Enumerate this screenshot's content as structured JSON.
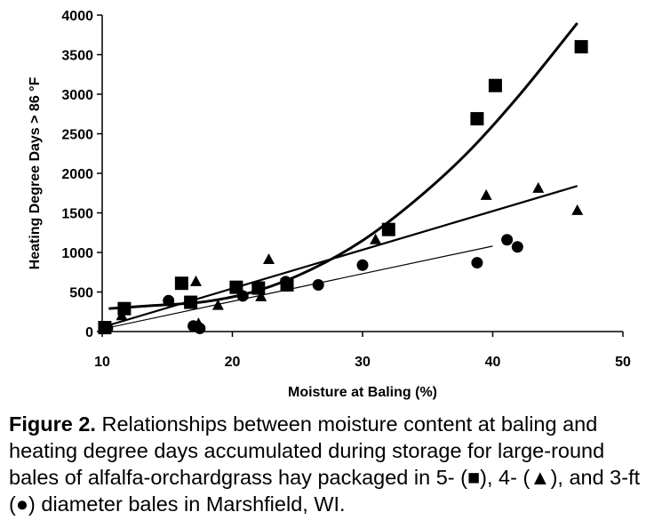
{
  "chart_data": {
    "type": "scatter",
    "xlabel": "Moisture at Baling (%)",
    "ylabel": "Heating Degree Days > 86 °F",
    "xlim": [
      10,
      50
    ],
    "ylim": [
      0,
      4000
    ],
    "x_ticks": [
      "10",
      "20",
      "30",
      "40",
      "50"
    ],
    "y_ticks": [
      "0",
      "500",
      "1000",
      "1500",
      "2000",
      "2500",
      "3000",
      "3500",
      "4000"
    ],
    "series": [
      {
        "marker": "square",
        "points": [
          {
            "x": 10.2,
            "y": 50
          },
          {
            "x": 11.7,
            "y": 290
          },
          {
            "x": 16.1,
            "y": 610
          },
          {
            "x": 16.8,
            "y": 370
          },
          {
            "x": 20.3,
            "y": 560
          },
          {
            "x": 22.0,
            "y": 550
          },
          {
            "x": 24.2,
            "y": 590
          },
          {
            "x": 32.0,
            "y": 1290
          },
          {
            "x": 38.8,
            "y": 2690
          },
          {
            "x": 40.2,
            "y": 3110
          },
          {
            "x": 46.8,
            "y": 3600
          }
        ],
        "trendline": {
          "kind": "polynomial",
          "x": [
            10.5,
            14,
            18,
            22,
            26,
            30,
            34,
            38,
            42,
            46.5
          ],
          "y": [
            290,
            330,
            380,
            520,
            780,
            1150,
            1650,
            2250,
            2980,
            3900
          ]
        }
      },
      {
        "marker": "triangle",
        "points": [
          {
            "x": 11.5,
            "y": 200
          },
          {
            "x": 17.2,
            "y": 630
          },
          {
            "x": 17.4,
            "y": 100
          },
          {
            "x": 18.9,
            "y": 330
          },
          {
            "x": 22.2,
            "y": 440
          },
          {
            "x": 22.8,
            "y": 910
          },
          {
            "x": 31.0,
            "y": 1160
          },
          {
            "x": 39.5,
            "y": 1720
          },
          {
            "x": 43.5,
            "y": 1810
          },
          {
            "x": 46.5,
            "y": 1530
          }
        ],
        "trendline": {
          "kind": "linear",
          "x": [
            10.5,
            46.5
          ],
          "y": [
            80,
            1840
          ]
        }
      },
      {
        "marker": "circle",
        "points": [
          {
            "x": 10.4,
            "y": 40
          },
          {
            "x": 15.1,
            "y": 390
          },
          {
            "x": 17.0,
            "y": 70
          },
          {
            "x": 17.5,
            "y": 40
          },
          {
            "x": 20.8,
            "y": 450
          },
          {
            "x": 24.1,
            "y": 630
          },
          {
            "x": 26.6,
            "y": 590
          },
          {
            "x": 30.0,
            "y": 840
          },
          {
            "x": 38.8,
            "y": 870
          },
          {
            "x": 41.1,
            "y": 1160
          },
          {
            "x": 41.9,
            "y": 1070
          }
        ],
        "trendline": {
          "kind": "linear",
          "x": [
            10.5,
            40.0
          ],
          "y": [
            50,
            1080
          ]
        }
      }
    ]
  },
  "caption": {
    "label": "Figure 2.",
    "text": " Relationships between moisture content at baling and heating degree days accumulated during storage for large-round bales of alfalfa-orchardgrass hay packaged in 5- (■), 4- (▲), and 3-ft (●) diameter bales in Marshfield, WI."
  }
}
